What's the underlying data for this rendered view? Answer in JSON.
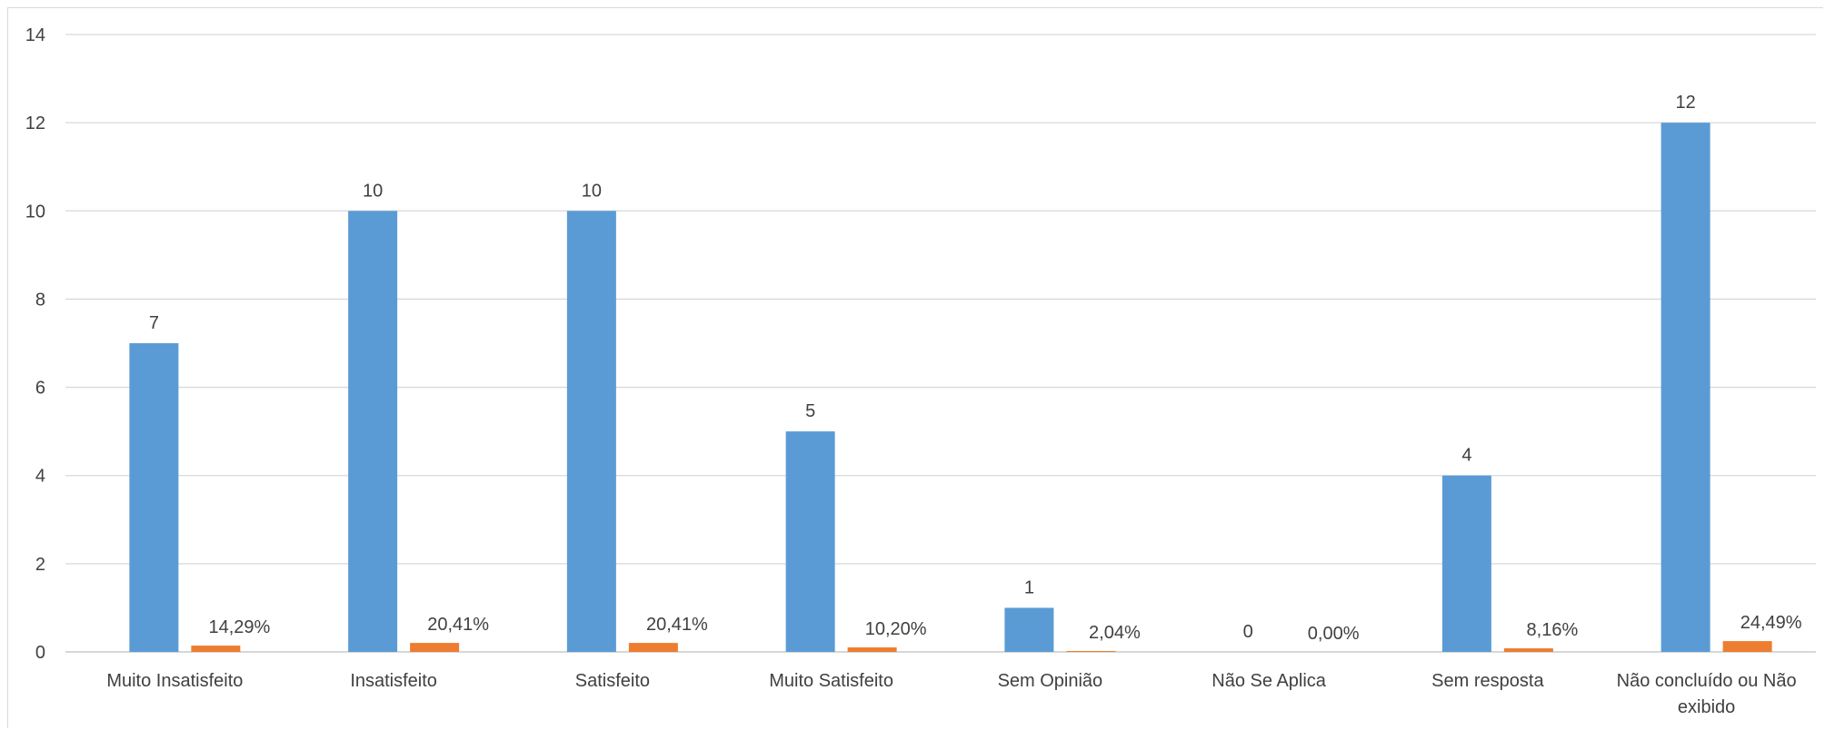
{
  "chart_data": {
    "type": "bar",
    "title": "",
    "xlabel": "",
    "ylabel": "",
    "ylim": [
      0,
      14
    ],
    "yticks": [
      "0",
      "2",
      "4",
      "6",
      "8",
      "10",
      "12",
      "14"
    ],
    "grid": true,
    "legend": "none",
    "categories": [
      "Muito Insatisfeito",
      "Insatisfeito",
      "Satisfeito",
      "Muito Satisfeito",
      "Sem Opinião",
      "Não Se Aplica",
      "Sem resposta",
      "Não concluído ou Não exibido"
    ],
    "series": [
      {
        "color": "#5b9bd5",
        "values": [
          7,
          10,
          10,
          5,
          1,
          0,
          4,
          12
        ],
        "labels": [
          "7",
          "10",
          "10",
          "5",
          "1",
          "0",
          "4",
          "12"
        ]
      },
      {
        "color": "#ed7d31",
        "values": [
          0.1429,
          0.2041,
          0.2041,
          0.102,
          0.0204,
          0.0,
          0.0816,
          0.2449
        ],
        "labels": [
          "14,29%",
          "20,41%",
          "20,41%",
          "10,20%",
          "2,04%",
          "0,00%",
          "8,16%",
          "24,49%"
        ]
      }
    ]
  }
}
